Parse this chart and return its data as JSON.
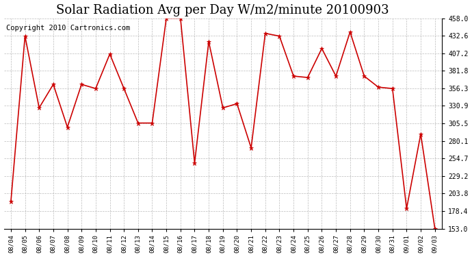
{
  "title": "Solar Radiation Avg per Day W/m2/minute 20100903",
  "copyright": "Copyright 2010 Cartronics.com",
  "dates": [
    "08/04",
    "08/05",
    "08/06",
    "08/07",
    "08/08",
    "08/09",
    "08/10",
    "08/11",
    "08/12",
    "08/13",
    "08/14",
    "08/15",
    "08/16",
    "08/17",
    "08/18",
    "08/19",
    "08/20",
    "08/21",
    "08/22",
    "08/23",
    "08/24",
    "08/25",
    "08/26",
    "08/27",
    "08/28",
    "08/29",
    "08/30",
    "08/31",
    "09/01",
    "09/02",
    "09/03"
  ],
  "values": [
    192,
    432,
    328,
    362,
    300,
    362,
    356,
    406,
    356,
    306,
    306,
    458,
    458,
    248,
    424,
    328,
    334,
    270,
    436,
    432,
    374,
    372,
    414,
    374,
    438,
    374,
    358,
    356,
    182,
    290,
    153
  ],
  "line_color": "#cc0000",
  "bg_color": "#ffffff",
  "grid_color": "#aaaaaa",
  "yticks": [
    153.0,
    178.4,
    203.8,
    229.2,
    254.7,
    280.1,
    305.5,
    330.9,
    356.3,
    381.8,
    407.2,
    432.6,
    458.0
  ],
  "ymin": 153.0,
  "ymax": 458.0,
  "title_fontsize": 13,
  "copyright_fontsize": 7.5
}
